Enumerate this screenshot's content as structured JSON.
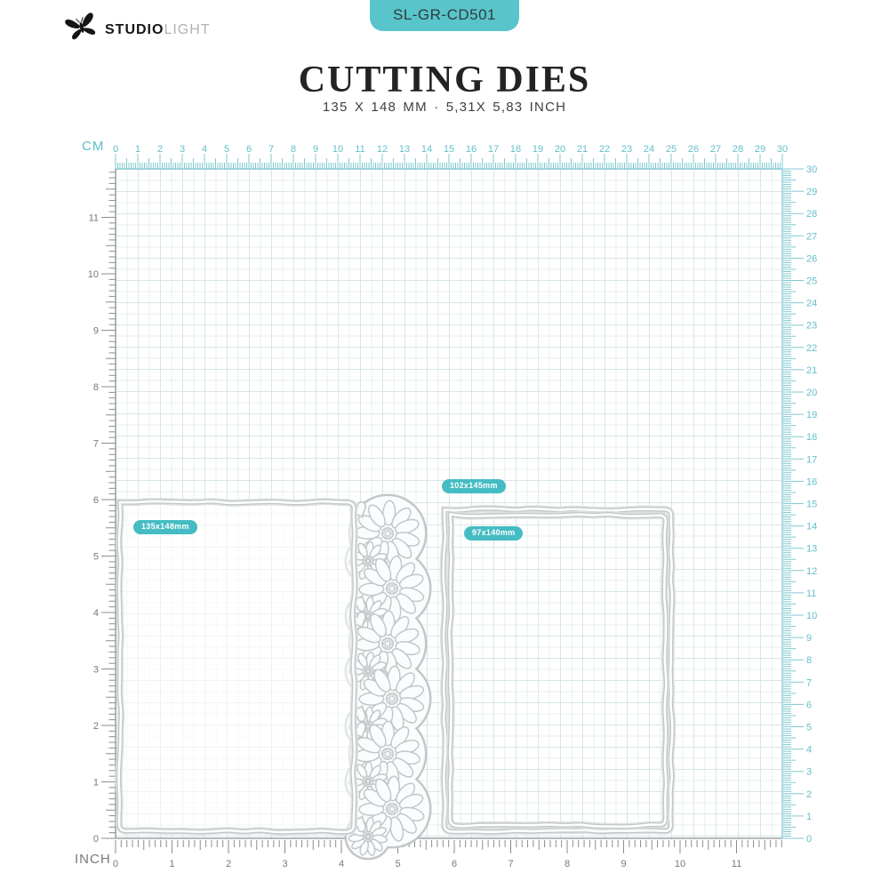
{
  "header": {
    "brand": {
      "bold": "STUDIO",
      "light": "LIGHT"
    },
    "sku": "SL-GR-CD501",
    "title": "CUTTING DIES",
    "subtitle": "135 X 148 MM · 5,31X 5,83 INCH"
  },
  "board": {
    "cm_label": "CM",
    "inch_label": "INCH",
    "cm_numbers": [
      0,
      1,
      2,
      3,
      4,
      5,
      6,
      7,
      8,
      9,
      10,
      11,
      12,
      13,
      14,
      15,
      16,
      17,
      18,
      19,
      20,
      21,
      22,
      23,
      24,
      25,
      26,
      27,
      28,
      29,
      30
    ],
    "inch_numbers": [
      0,
      1,
      2,
      3,
      4,
      5,
      6,
      7,
      8,
      9,
      10,
      11
    ]
  },
  "dies": [
    {
      "name": "card base die with daisy flower border",
      "size_label": "135x148mm"
    },
    {
      "name": "deckle edge frame outer die",
      "size_label": "102x145mm"
    },
    {
      "name": "deckle edge frame inner die",
      "size_label": "97x140mm"
    }
  ],
  "colors": {
    "accent_teal": "#58c5cb",
    "label_teal": "#45bcc3",
    "ruler_teal": "#7fc8d0",
    "ruler_teal_text": "#63bfc9",
    "ruler_gray": "#8a8e90",
    "ruler_gray_text": "#77797b",
    "die_outline": "#c2c7c8",
    "die_fill": "#fbfcfd",
    "grid_line": "#dfe9ec"
  }
}
